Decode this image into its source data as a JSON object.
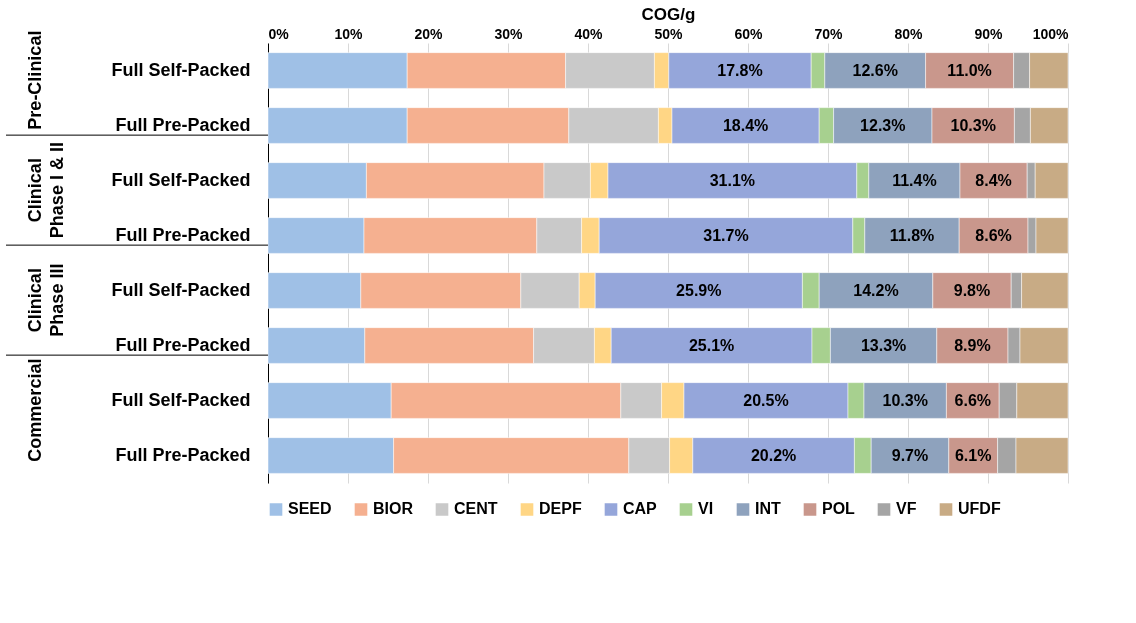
{
  "chart_data": {
    "type": "bar",
    "orientation": "horizontal",
    "stacked": true,
    "xlabel": "COG/g",
    "categories": [
      "Full Self-Packed",
      "Full Pre-Packed",
      "Full Self-Packed",
      "Full Pre-Packed",
      "Full Self-Packed",
      "Full Pre-Packed",
      "Full Self-Packed",
      "Full Pre-Packed"
    ],
    "annotations": [
      "Pre-Clinical",
      "Clinical\nPhase I & II",
      "Clinical\nPhase III",
      "Commercial"
    ],
    "xlim": [
      0,
      100
    ],
    "xticks": [
      {
        "value": 0,
        "label": "0%"
      },
      {
        "value": 10,
        "label": "10%"
      },
      {
        "value": 20,
        "label": "20%"
      },
      {
        "value": 30,
        "label": "30%"
      },
      {
        "value": 40,
        "label": "40%"
      },
      {
        "value": 50,
        "label": "50%"
      },
      {
        "value": 60,
        "label": "60%"
      },
      {
        "value": 70,
        "label": "70%"
      },
      {
        "value": 80,
        "label": "80%"
      },
      {
        "value": 90,
        "label": "90%"
      },
      {
        "value": 100,
        "label": "100%"
      }
    ],
    "grid": "x",
    "legend": "bottom",
    "series": [
      {
        "name": "SEED",
        "color": "#9fc0e6",
        "values": [
          17.4,
          17.4,
          12.3,
          12.0,
          11.6,
          12.1,
          15.4,
          15.7
        ]
      },
      {
        "name": "BIOR",
        "color": "#f5b090",
        "values": [
          19.8,
          20.2,
          22.2,
          21.6,
          20.0,
          21.1,
          28.7,
          29.4
        ]
      },
      {
        "name": "CENT",
        "color": "#c9c9c9",
        "values": [
          11.1,
          11.2,
          5.8,
          5.6,
          7.3,
          7.6,
          5.1,
          5.1
        ]
      },
      {
        "name": "DEPF",
        "color": "#ffd685",
        "values": [
          1.8,
          1.7,
          2.2,
          2.2,
          2.0,
          2.1,
          2.8,
          2.9
        ]
      },
      {
        "name": "CAP",
        "color": "#95a6da",
        "values": [
          17.8,
          18.4,
          31.1,
          31.7,
          25.9,
          25.1,
          20.5,
          20.2
        ],
        "value_labels": [
          "17.8%",
          "18.4%",
          "31.1%",
          "31.7%",
          "25.9%",
          "25.1%",
          "20.5%",
          "20.2%"
        ]
      },
      {
        "name": "VI",
        "color": "#a7d08f",
        "values": [
          1.7,
          1.8,
          1.5,
          1.5,
          2.1,
          2.3,
          2.0,
          2.1
        ]
      },
      {
        "name": "INT",
        "color": "#8ea2bd",
        "values": [
          12.6,
          12.3,
          11.4,
          11.8,
          14.2,
          13.3,
          10.3,
          9.7
        ],
        "value_labels": [
          "12.6%",
          "12.3%",
          "11.4%",
          "11.8%",
          "14.2%",
          "13.3%",
          "10.3%",
          "9.7%"
        ]
      },
      {
        "name": "POL",
        "color": "#c9978c",
        "values": [
          11.0,
          10.3,
          8.4,
          8.6,
          9.8,
          8.9,
          6.6,
          6.1
        ],
        "value_labels": [
          "11.0%",
          "10.3%",
          "8.4%",
          "8.6%",
          "9.8%",
          "8.9%",
          "6.6%",
          "6.1%"
        ]
      },
      {
        "name": "VF",
        "color": "#a5a5a5",
        "values": [
          2.0,
          2.0,
          1.0,
          1.0,
          1.3,
          1.5,
          2.2,
          2.3
        ]
      },
      {
        "name": "UFDF",
        "color": "#c8ab85",
        "values": [
          4.8,
          4.7,
          4.1,
          4.0,
          5.8,
          6.0,
          6.4,
          6.5
        ]
      }
    ]
  }
}
